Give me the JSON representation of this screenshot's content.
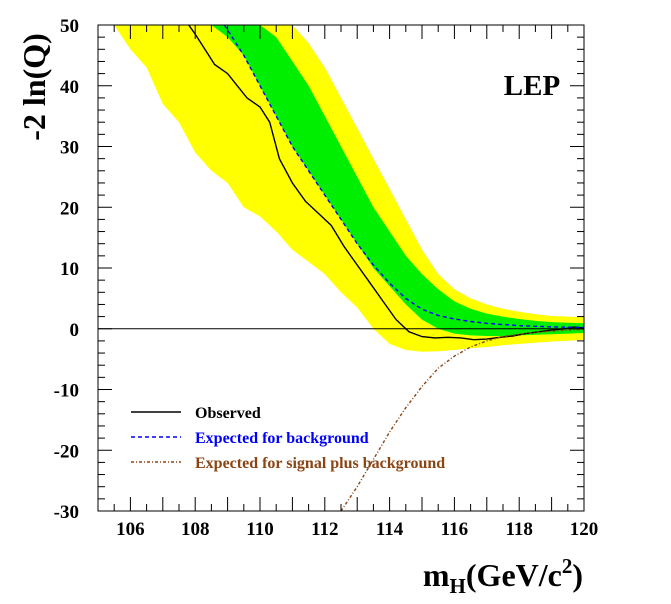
{
  "chart_data": {
    "type": "line",
    "title": "",
    "annotation": "LEP",
    "ylabel": "-2 ln(Q)",
    "xlabel": {
      "main": "m",
      "sub": "H",
      "rest": "(GeV/c",
      "sup": "2",
      "close": ")"
    },
    "xlim": [
      105,
      120
    ],
    "ylim": [
      -30,
      50
    ],
    "x_ticks": [
      106,
      108,
      110,
      112,
      114,
      116,
      118,
      120
    ],
    "y_ticks": [
      -30,
      -20,
      -10,
      0,
      10,
      20,
      30,
      40,
      50
    ],
    "grid": false,
    "legend_position": "bottom-left",
    "colors": {
      "band_2sigma": "#ffff00",
      "band_1sigma": "#00ee00",
      "observed": "#000000",
      "background": "#0000ff",
      "signal_plus_background": "#8b4513"
    },
    "bands": {
      "two_sigma": {
        "x": [
          105.5,
          106,
          106.5,
          107,
          107.5,
          108,
          108.5,
          109,
          109.5,
          110,
          110.5,
          111,
          111.5,
          112,
          112.5,
          113,
          113.5,
          114,
          114.5,
          115,
          115.5,
          116,
          116.5,
          117,
          117.5,
          118,
          118.5,
          119,
          119.5,
          120
        ],
        "upper": [
          50,
          50,
          50,
          50,
          50,
          50,
          50,
          50,
          50,
          50,
          50,
          50,
          47,
          43,
          38,
          33,
          28,
          23,
          18,
          13,
          9,
          6.5,
          5,
          4,
          3.3,
          2.8,
          2.4,
          2.1,
          2,
          1.9
        ],
        "lower": [
          50,
          46,
          43,
          37,
          34,
          29,
          26,
          24,
          20,
          18.5,
          16,
          13,
          11,
          9,
          6,
          3.5,
          0,
          -2.5,
          -3.5,
          -3.8,
          -3.7,
          -3.5,
          -3.2,
          -3,
          -2.7,
          -2.5,
          -2.3,
          -2.1,
          -2,
          -1.8
        ]
      },
      "one_sigma": {
        "x": [
          108.5,
          109,
          109.5,
          110,
          110.5,
          111,
          111.5,
          112,
          112.5,
          113,
          113.5,
          114,
          114.5,
          115,
          115.5,
          116,
          116.5,
          117,
          117.5,
          118,
          118.5,
          119,
          119.5,
          120
        ],
        "upper": [
          50,
          50,
          50,
          50,
          48,
          44,
          40,
          35,
          30,
          25,
          20,
          16,
          12,
          9,
          6.5,
          4.5,
          3.3,
          2.5,
          2,
          1.6,
          1.3,
          1.1,
          1,
          0.9
        ],
        "lower": [
          50,
          48,
          45,
          40,
          35,
          30,
          26,
          22,
          18,
          14,
          10,
          7,
          4,
          1.5,
          0,
          -0.8,
          -1.1,
          -1.2,
          -1.2,
          -1.1,
          -1,
          -0.9,
          -0.8,
          -0.7
        ]
      }
    },
    "series": [
      {
        "name": "Observed",
        "dash": "",
        "x": [
          107.8,
          108,
          108.3,
          108.6,
          109,
          109.3,
          109.6,
          110,
          110.3,
          110.6,
          111,
          111.4,
          111.8,
          112.2,
          112.6,
          113,
          113.4,
          113.8,
          114.2,
          114.6,
          115,
          115.4,
          115.8,
          116.2,
          116.6,
          117,
          117.4,
          117.8,
          118.2,
          118.6,
          119,
          119.4,
          119.7,
          120
        ],
        "y": [
          50,
          48.5,
          46,
          43.5,
          42,
          40,
          38,
          36.5,
          34,
          28,
          24,
          21,
          19,
          17,
          13.5,
          10.5,
          7.5,
          4.5,
          1.5,
          -0.5,
          -1.3,
          -1.5,
          -1.4,
          -1.5,
          -1.8,
          -1.7,
          -1.4,
          -1.2,
          -0.8,
          -0.5,
          -0.2,
          0,
          0.3,
          0.1
        ]
      },
      {
        "name": "Expected for background",
        "dash": "4,3",
        "x": [
          108.9,
          109.5,
          110,
          110.5,
          111,
          111.5,
          112,
          112.5,
          113,
          113.5,
          114,
          114.5,
          115,
          115.5,
          116,
          116.5,
          117,
          117.5,
          118,
          118.5,
          119,
          119.5,
          120
        ],
        "y": [
          50,
          45,
          40,
          35,
          30,
          26,
          22,
          18,
          14,
          10.5,
          7.5,
          5,
          3.2,
          2.2,
          1.6,
          1.2,
          0.9,
          0.7,
          0.5,
          0.4,
          0.3,
          0.25,
          0.2
        ]
      },
      {
        "name": "Expected for signal plus background",
        "dash": "3,2,1,2",
        "x": [
          112.5,
          113,
          113.5,
          114,
          114.5,
          115,
          115.5,
          116,
          116.5,
          117,
          117.5,
          118,
          118.5,
          119,
          119.5,
          120
        ],
        "y": [
          -30,
          -26,
          -21.5,
          -17,
          -13,
          -9.5,
          -6.5,
          -4.5,
          -3,
          -2,
          -1.3,
          -0.9,
          -0.6,
          -0.4,
          -0.2,
          -0.1
        ]
      }
    ]
  }
}
